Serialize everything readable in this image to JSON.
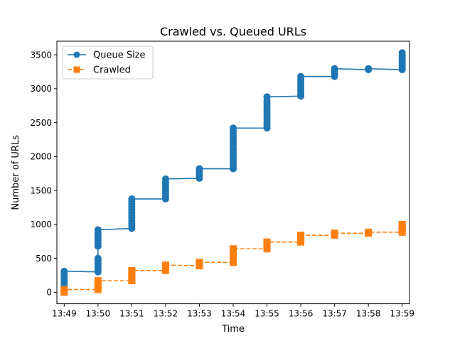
{
  "chart_data": {
    "type": "line",
    "title": "Crawled vs. Queued URLs",
    "xlabel": "Time",
    "ylabel": "Number of URLs",
    "x_ticks": [
      "13:49",
      "13:50",
      "13:51",
      "13:52",
      "13:53",
      "13:54",
      "13:55",
      "13:56",
      "13:57",
      "13:58",
      "13:59"
    ],
    "y_ticks": [
      0,
      500,
      1000,
      1500,
      2000,
      2500,
      3000,
      3500
    ],
    "xlim": [
      "13:48:47",
      "13:59:13"
    ],
    "ylim": [
      -170,
      3700
    ],
    "grid": false,
    "legend_position": "upper-left",
    "series": [
      {
        "name": "Queue Size",
        "color": "#1f77b4",
        "marker": "circle",
        "linestyle": "solid",
        "points": [
          [
            "13:49",
            0
          ],
          [
            "13:49",
            30
          ],
          [
            "13:49",
            60
          ],
          [
            "13:49",
            100
          ],
          [
            "13:49",
            130
          ],
          [
            "13:49",
            170
          ],
          [
            "13:49",
            200
          ],
          [
            "13:49",
            240
          ],
          [
            "13:49",
            270
          ],
          [
            "13:49",
            310
          ],
          [
            "13:50",
            300
          ],
          [
            "13:50",
            340
          ],
          [
            "13:50",
            380
          ],
          [
            "13:50",
            420
          ],
          [
            "13:50",
            460
          ],
          [
            "13:50",
            500
          ],
          [
            "13:50",
            680
          ],
          [
            "13:50",
            720
          ],
          [
            "13:50",
            760
          ],
          [
            "13:50",
            800
          ],
          [
            "13:50",
            840
          ],
          [
            "13:50",
            880
          ],
          [
            "13:50",
            920
          ],
          [
            "13:51",
            940
          ],
          [
            "13:51",
            980
          ],
          [
            "13:51",
            1020
          ],
          [
            "13:51",
            1060
          ],
          [
            "13:51",
            1100
          ],
          [
            "13:51",
            1140
          ],
          [
            "13:51",
            1180
          ],
          [
            "13:51",
            1220
          ],
          [
            "13:51",
            1260
          ],
          [
            "13:51",
            1300
          ],
          [
            "13:51",
            1340
          ],
          [
            "13:51",
            1375
          ],
          [
            "13:52",
            1375
          ],
          [
            "13:52",
            1410
          ],
          [
            "13:52",
            1460
          ],
          [
            "13:52",
            1500
          ],
          [
            "13:52",
            1540
          ],
          [
            "13:52",
            1580
          ],
          [
            "13:52",
            1620
          ],
          [
            "13:52",
            1670
          ],
          [
            "13:53",
            1680
          ],
          [
            "13:53",
            1720
          ],
          [
            "13:53",
            1760
          ],
          [
            "13:53",
            1800
          ],
          [
            "13:53",
            1820
          ],
          [
            "13:54",
            1820
          ],
          [
            "13:54",
            1860
          ],
          [
            "13:54",
            1900
          ],
          [
            "13:54",
            1940
          ],
          [
            "13:54",
            1980
          ],
          [
            "13:54",
            2020
          ],
          [
            "13:54",
            2060
          ],
          [
            "13:54",
            2100
          ],
          [
            "13:54",
            2140
          ],
          [
            "13:54",
            2180
          ],
          [
            "13:54",
            2220
          ],
          [
            "13:54",
            2260
          ],
          [
            "13:54",
            2300
          ],
          [
            "13:54",
            2340
          ],
          [
            "13:54",
            2380
          ],
          [
            "13:54",
            2420
          ],
          [
            "13:55",
            2420
          ],
          [
            "13:55",
            2460
          ],
          [
            "13:55",
            2500
          ],
          [
            "13:55",
            2540
          ],
          [
            "13:55",
            2580
          ],
          [
            "13:55",
            2620
          ],
          [
            "13:55",
            2660
          ],
          [
            "13:55",
            2700
          ],
          [
            "13:55",
            2740
          ],
          [
            "13:55",
            2780
          ],
          [
            "13:55",
            2820
          ],
          [
            "13:55",
            2880
          ],
          [
            "13:56",
            2890
          ],
          [
            "13:56",
            2930
          ],
          [
            "13:56",
            2970
          ],
          [
            "13:56",
            3010
          ],
          [
            "13:56",
            3050
          ],
          [
            "13:56",
            3090
          ],
          [
            "13:56",
            3130
          ],
          [
            "13:56",
            3180
          ],
          [
            "13:57",
            3180
          ],
          [
            "13:57",
            3210
          ],
          [
            "13:57",
            3240
          ],
          [
            "13:57",
            3270
          ],
          [
            "13:57",
            3295
          ],
          [
            "13:58",
            3280
          ],
          [
            "13:58",
            3295
          ],
          [
            "13:59",
            3280
          ],
          [
            "13:59",
            3310
          ],
          [
            "13:59",
            3340
          ],
          [
            "13:59",
            3370
          ],
          [
            "13:59",
            3400
          ],
          [
            "13:59",
            3430
          ],
          [
            "13:59",
            3460
          ],
          [
            "13:59",
            3490
          ],
          [
            "13:59",
            3530
          ]
        ]
      },
      {
        "name": "Crawled",
        "color": "#ff7f0e",
        "marker": "square",
        "linestyle": "dashed",
        "points": [
          [
            "13:49",
            0
          ],
          [
            "13:49",
            40
          ],
          [
            "13:50",
            40
          ],
          [
            "13:50",
            80
          ],
          [
            "13:50",
            120
          ],
          [
            "13:50",
            170
          ],
          [
            "13:51",
            170
          ],
          [
            "13:51",
            210
          ],
          [
            "13:51",
            250
          ],
          [
            "13:51",
            290
          ],
          [
            "13:51",
            320
          ],
          [
            "13:52",
            320
          ],
          [
            "13:52",
            350
          ],
          [
            "13:52",
            380
          ],
          [
            "13:52",
            400
          ],
          [
            "13:53",
            390
          ],
          [
            "13:53",
            420
          ],
          [
            "13:53",
            440
          ],
          [
            "13:54",
            440
          ],
          [
            "13:54",
            480
          ],
          [
            "13:54",
            520
          ],
          [
            "13:54",
            560
          ],
          [
            "13:54",
            600
          ],
          [
            "13:54",
            640
          ],
          [
            "13:55",
            640
          ],
          [
            "13:55",
            680
          ],
          [
            "13:55",
            720
          ],
          [
            "13:55",
            740
          ],
          [
            "13:56",
            740
          ],
          [
            "13:56",
            780
          ],
          [
            "13:56",
            820
          ],
          [
            "13:56",
            840
          ],
          [
            "13:57",
            840
          ],
          [
            "13:57",
            870
          ],
          [
            "13:58",
            870
          ],
          [
            "13:58",
            885
          ],
          [
            "13:59",
            885
          ],
          [
            "13:59",
            920
          ],
          [
            "13:59",
            960
          ],
          [
            "13:59",
            1000
          ]
        ]
      }
    ]
  }
}
